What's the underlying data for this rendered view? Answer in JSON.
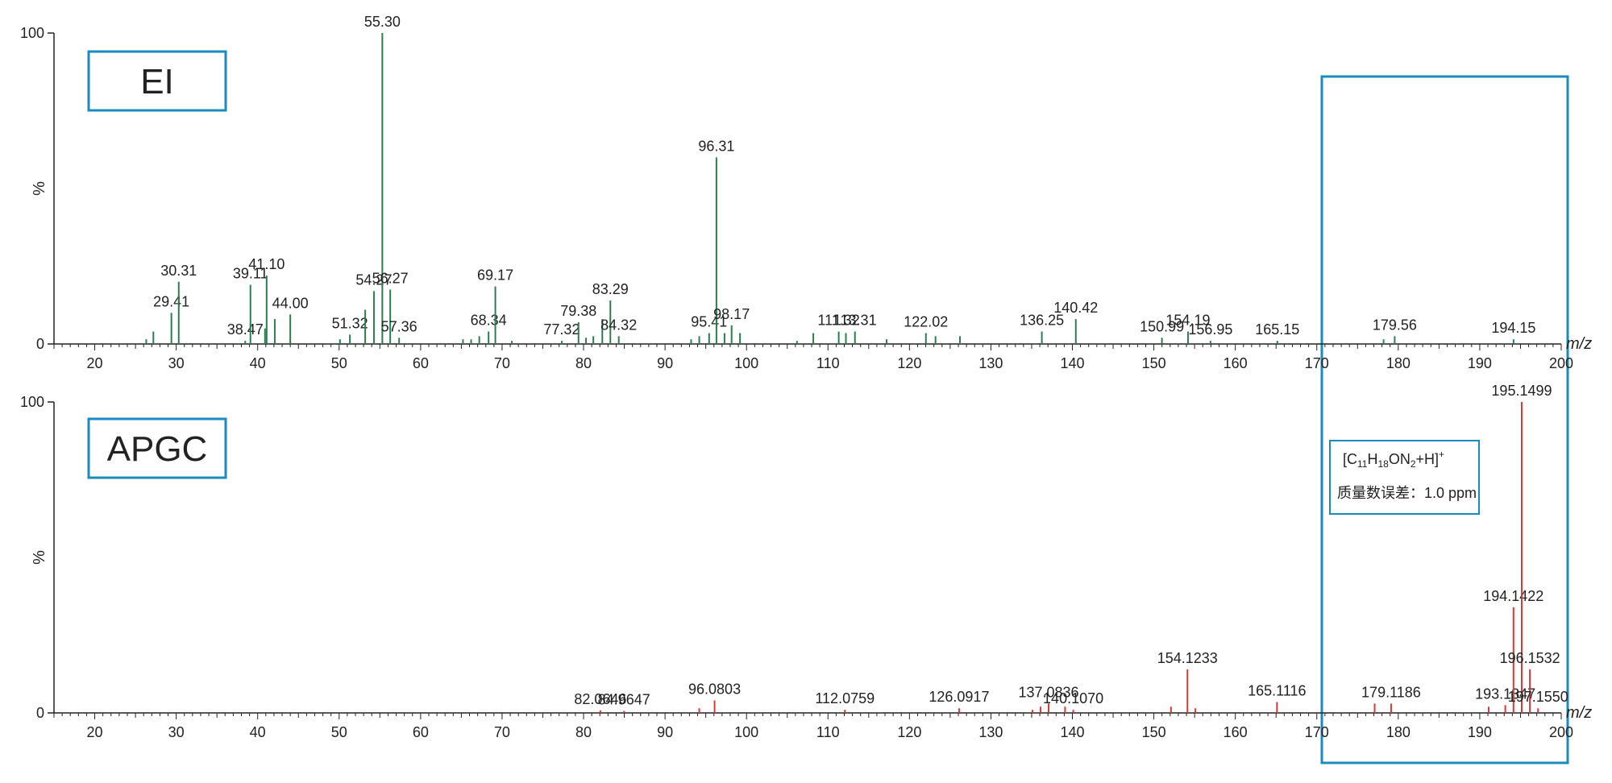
{
  "colors": {
    "ei": "#2e7d4f",
    "apgc": "#d23a3a",
    "frame": "#1b8bbf",
    "axis": "#222222"
  },
  "chart_data": [
    {
      "type": "bar",
      "panel": "EI",
      "panel_label": "EI",
      "ylabel": "%",
      "xunit": "m/z",
      "xlim": [
        15,
        200
      ],
      "ylim": [
        0,
        100
      ],
      "y_ticks": [
        0,
        100
      ],
      "x_ticks": [
        20,
        30,
        40,
        50,
        60,
        70,
        80,
        90,
        100,
        110,
        120,
        130,
        140,
        150,
        160,
        170,
        180,
        190,
        200
      ],
      "x_tick_labels": [
        "20",
        "30",
        "40",
        "50",
        "60",
        "70",
        "80",
        "90",
        "100",
        "110",
        "120",
        "130",
        "140",
        "150",
        "160",
        "170",
        "180",
        "190",
        "200"
      ],
      "y_tick_labels": [
        "0",
        "100"
      ],
      "peaks": [
        {
          "x": 26.32,
          "y": 1.5
        },
        {
          "x": 27.2,
          "y": 4
        },
        {
          "x": 29.41,
          "y": 10,
          "label": "29.41"
        },
        {
          "x": 30.31,
          "y": 20,
          "label": "30.31"
        },
        {
          "x": 38.47,
          "y": 1,
          "label": "38.47"
        },
        {
          "x": 39.11,
          "y": 19,
          "label": "39.11"
        },
        {
          "x": 40.9,
          "y": 5
        },
        {
          "x": 41.1,
          "y": 22,
          "label": "41.10"
        },
        {
          "x": 42.1,
          "y": 8
        },
        {
          "x": 44.0,
          "y": 9.5,
          "label": "44.00"
        },
        {
          "x": 50.1,
          "y": 1.5
        },
        {
          "x": 51.32,
          "y": 3,
          "label": "51.32"
        },
        {
          "x": 53.2,
          "y": 11
        },
        {
          "x": 54.27,
          "y": 17,
          "label": "54.27"
        },
        {
          "x": 55.3,
          "y": 100,
          "label": "55.30"
        },
        {
          "x": 56.27,
          "y": 17.5,
          "label": "56.27"
        },
        {
          "x": 57.36,
          "y": 2,
          "label": "57.36"
        },
        {
          "x": 65.2,
          "y": 1.5
        },
        {
          "x": 66.2,
          "y": 1.5
        },
        {
          "x": 67.2,
          "y": 2.5
        },
        {
          "x": 68.34,
          "y": 4,
          "label": "68.34"
        },
        {
          "x": 69.17,
          "y": 18.5,
          "label": "69.17"
        },
        {
          "x": 71.2,
          "y": 1
        },
        {
          "x": 77.32,
          "y": 1,
          "label": "77.32"
        },
        {
          "x": 79.38,
          "y": 7,
          "label": "79.38"
        },
        {
          "x": 80.3,
          "y": 2
        },
        {
          "x": 81.2,
          "y": 2.5
        },
        {
          "x": 82.3,
          "y": 8
        },
        {
          "x": 83.29,
          "y": 14,
          "label": "83.29"
        },
        {
          "x": 84.32,
          "y": 2.5,
          "label": "84.32"
        },
        {
          "x": 93.2,
          "y": 1.5
        },
        {
          "x": 94.2,
          "y": 2.5
        },
        {
          "x": 95.41,
          "y": 3.5,
          "label": "95.41"
        },
        {
          "x": 96.31,
          "y": 60,
          "label": "96.31"
        },
        {
          "x": 97.3,
          "y": 3.5
        },
        {
          "x": 98.17,
          "y": 6,
          "label": "98.17"
        },
        {
          "x": 99.2,
          "y": 3.5
        },
        {
          "x": 106.2,
          "y": 1
        },
        {
          "x": 108.2,
          "y": 3.5
        },
        {
          "x": 111.32,
          "y": 4,
          "label": "111.32"
        },
        {
          "x": 112.2,
          "y": 3.5
        },
        {
          "x": 113.31,
          "y": 4,
          "label": "113.31"
        },
        {
          "x": 117.2,
          "y": 1.5
        },
        {
          "x": 122.02,
          "y": 3.5,
          "label": "122.02"
        },
        {
          "x": 123.2,
          "y": 2.5
        },
        {
          "x": 126.2,
          "y": 2.5
        },
        {
          "x": 136.25,
          "y": 4,
          "label": "136.25"
        },
        {
          "x": 140.42,
          "y": 8,
          "label": "140.42"
        },
        {
          "x": 150.99,
          "y": 2,
          "label": "150.99"
        },
        {
          "x": 154.19,
          "y": 4,
          "label": "154.19"
        },
        {
          "x": 156.95,
          "y": 1,
          "label": "156.95"
        },
        {
          "x": 165.15,
          "y": 1,
          "label": "165.15"
        },
        {
          "x": 178.2,
          "y": 1.5
        },
        {
          "x": 179.56,
          "y": 2.5,
          "label": "179.56"
        },
        {
          "x": 194.15,
          "y": 1.5,
          "label": "194.15"
        }
      ]
    },
    {
      "type": "bar",
      "panel": "APGC",
      "panel_label": "APGC",
      "ylabel": "%",
      "xunit": "m/z",
      "xlim": [
        15,
        200
      ],
      "ylim": [
        0,
        100
      ],
      "y_ticks": [
        0,
        100
      ],
      "x_ticks": [
        20,
        30,
        40,
        50,
        60,
        70,
        80,
        90,
        100,
        110,
        120,
        130,
        140,
        150,
        160,
        170,
        180,
        190,
        200
      ],
      "x_tick_labels": [
        "20",
        "30",
        "40",
        "50",
        "60",
        "70",
        "80",
        "90",
        "100",
        "110",
        "120",
        "130",
        "140",
        "150",
        "160",
        "170",
        "180",
        "190",
        "200"
      ],
      "y_tick_labels": [
        "0",
        "100"
      ],
      "peaks": [
        {
          "x": 82.0646,
          "y": 0.8,
          "label": "82.0646"
        },
        {
          "x": 84.9647,
          "y": 0.6,
          "label": "84.9647"
        },
        {
          "x": 94.2,
          "y": 1.5
        },
        {
          "x": 96.0803,
          "y": 4,
          "label": "96.0803"
        },
        {
          "x": 112.0759,
          "y": 1,
          "label": "112.0759"
        },
        {
          "x": 126.0917,
          "y": 1.5,
          "label": "126.0917"
        },
        {
          "x": 135.1,
          "y": 1
        },
        {
          "x": 136.1,
          "y": 2
        },
        {
          "x": 137.0836,
          "y": 3,
          "label": "137.0836"
        },
        {
          "x": 139.1,
          "y": 2
        },
        {
          "x": 140.107,
          "y": 1,
          "label": "140.1070"
        },
        {
          "x": 152.1,
          "y": 2
        },
        {
          "x": 154.1233,
          "y": 14,
          "label": "154.1233"
        },
        {
          "x": 155.1,
          "y": 1.5
        },
        {
          "x": 165.1116,
          "y": 3.5,
          "label": "165.1116"
        },
        {
          "x": 177.1,
          "y": 3
        },
        {
          "x": 179.1186,
          "y": 3,
          "label": "179.1186"
        },
        {
          "x": 191.1,
          "y": 2
        },
        {
          "x": 193.1347,
          "y": 2.5,
          "label": "193.1347"
        },
        {
          "x": 194.1422,
          "y": 34,
          "label": "194.1422"
        },
        {
          "x": 195.1499,
          "y": 100,
          "label": "195.1499"
        },
        {
          "x": 196.1532,
          "y": 14,
          "label": "196.1532"
        },
        {
          "x": 197.155,
          "y": 1.5,
          "label": "197.1550"
        }
      ]
    }
  ],
  "annotation": {
    "formula_prefix": "[C",
    "formula_c_sub": "11",
    "formula_h": "H",
    "formula_h_sub": "18",
    "formula_on": "ON",
    "formula_n_sub": "2",
    "formula_tail": "+H]",
    "formula_charge": "+",
    "mass_error": "质量数误差：1.0 ppm"
  }
}
